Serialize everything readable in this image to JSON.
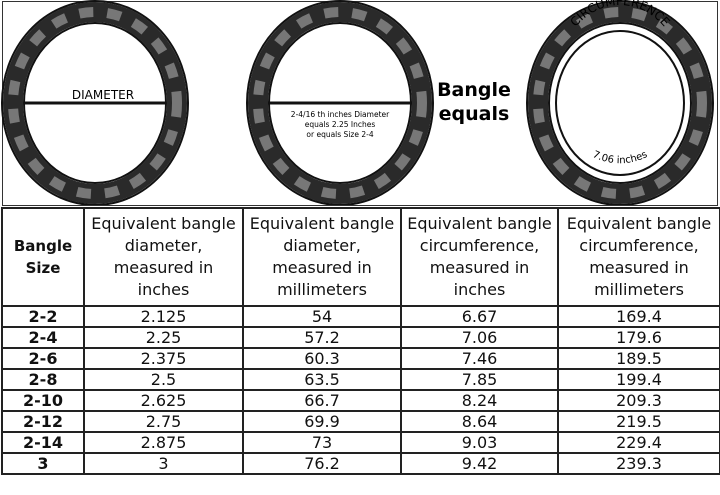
{
  "illustration": {
    "diameter_label": "DIAMETER",
    "middle_note": [
      "2-4/16 th inches Diameter",
      "equals 2.25 Inches",
      "or equals Size 2-4"
    ],
    "bangle_equals": [
      "Bangle",
      "equals"
    ],
    "circumference_label": "CIRCUMFERENCE",
    "circumference_value": "7.06 inches"
  },
  "table": {
    "headers": [
      [
        "Bangle",
        "Size"
      ],
      [
        "Equivalent bangle",
        "diameter,",
        "measured in",
        "inches"
      ],
      [
        "Equivalent bangle",
        "diameter,",
        "measured in",
        "millimeters"
      ],
      [
        "Equivalent bangle",
        "circumference,",
        "measured in",
        "inches"
      ],
      [
        "Equivalent bangle",
        "circumference,",
        "measured in",
        "millimeters"
      ]
    ],
    "rows": [
      [
        "2-2",
        "2.125",
        "54",
        "6.67",
        "169.4"
      ],
      [
        "2-4",
        "2.25",
        "57.2",
        "7.06",
        "179.6"
      ],
      [
        "2-6",
        "2.375",
        "60.3",
        "7.46",
        "189.5"
      ],
      [
        "2-8",
        "2.5",
        "63.5",
        "7.85",
        "199.4"
      ],
      [
        "2-10",
        "2.625",
        "66.7",
        "8.24",
        "209.3"
      ],
      [
        "2-12",
        "2.75",
        "69.9",
        "8.64",
        "219.5"
      ],
      [
        "2-14",
        "2.875",
        "73",
        "9.03",
        "229.4"
      ],
      [
        "3",
        "3",
        "76.2",
        "9.42",
        "239.3"
      ]
    ]
  }
}
